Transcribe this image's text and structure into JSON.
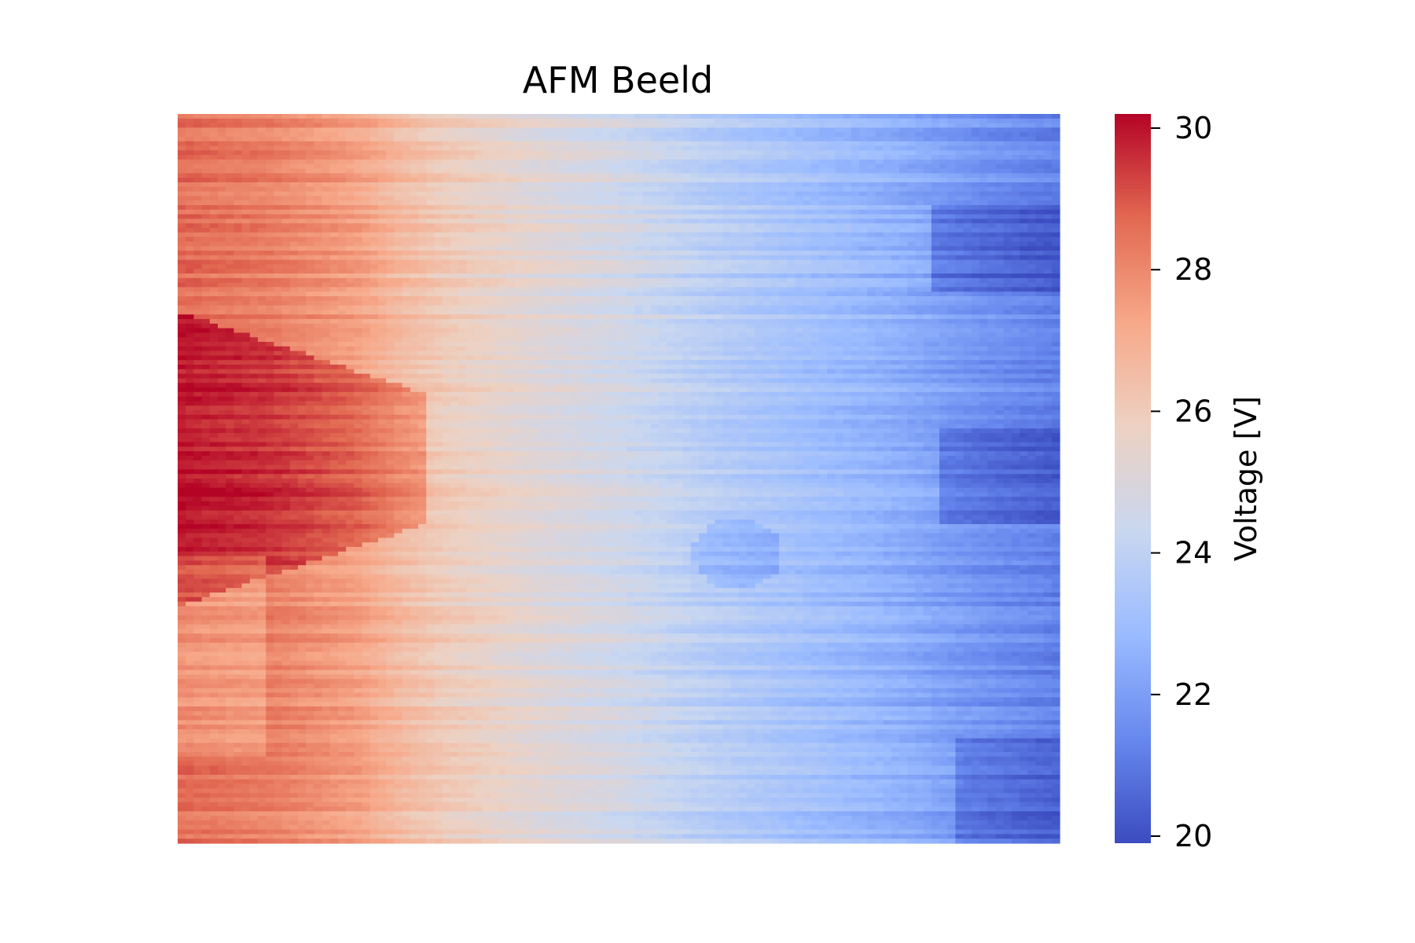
{
  "chart_data": {
    "type": "heatmap",
    "title": "AFM Beeld",
    "colormap": "coolwarm",
    "xlabel": "",
    "ylabel": "",
    "axes_visible": false,
    "grid": false,
    "colorbar": {
      "label": "Voltage [V]",
      "placement": "right",
      "range": [
        19.9,
        30.2
      ],
      "ticks": [
        20,
        22,
        24,
        26,
        28,
        30
      ],
      "tick_labels": [
        "20",
        "22",
        "24",
        "26",
        "28",
        "30"
      ],
      "colors": [
        "#3b4cc0",
        "#6788ee",
        "#9abbff",
        "#c9d7f0",
        "#edd1c2",
        "#f7a889",
        "#e26952",
        "#b40426"
      ]
    },
    "value_profile": {
      "description_free": true,
      "columns": [
        0,
        0.1,
        0.2,
        0.25,
        0.3,
        0.4,
        0.5,
        0.6,
        0.7,
        0.8,
        0.9,
        1.0
      ],
      "typical_values": [
        28.6,
        28.2,
        27.4,
        26.6,
        26.0,
        25.2,
        24.6,
        23.8,
        23.2,
        22.6,
        21.8,
        21.2
      ]
    }
  }
}
